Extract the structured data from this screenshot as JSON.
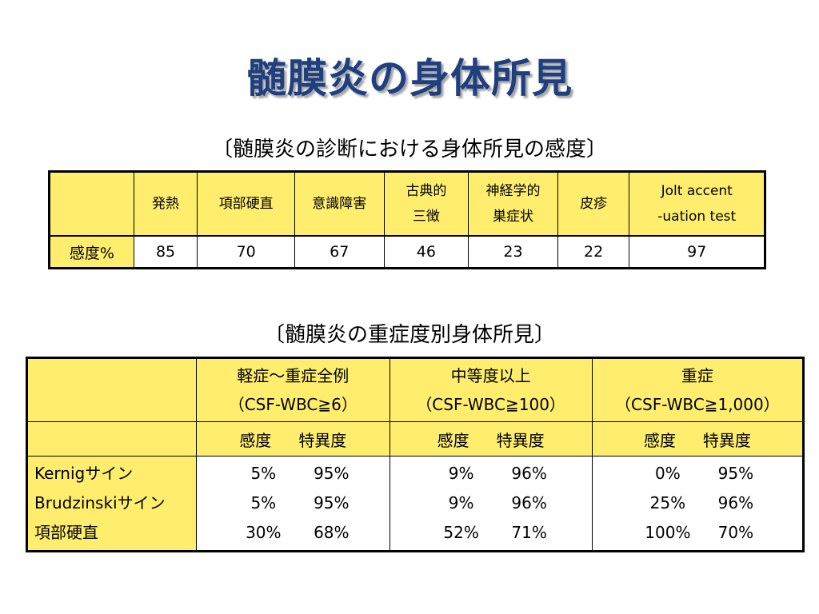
{
  "title": "髄膜炎の身体所見",
  "caption1": "〔髄膜炎の診断における身体所見の感度〕",
  "table1": {
    "headers": [
      {
        "line1": "発熱",
        "line2": ""
      },
      {
        "line1": "項部硬直",
        "line2": ""
      },
      {
        "line1": "意識障害",
        "line2": ""
      },
      {
        "line1": "古典的",
        "line2": "三徴"
      },
      {
        "line1": "神経学的",
        "line2": "巣症状"
      },
      {
        "line1": "皮疹",
        "line2": ""
      },
      {
        "line1": "Jolt accent",
        "line2": "-uation test"
      }
    ],
    "row_label": "感度%",
    "values": [
      "85",
      "70",
      "67",
      "46",
      "23",
      "22",
      "97"
    ]
  },
  "caption2": "〔髄膜炎の重症度別身体所見〕",
  "table2": {
    "groups": [
      {
        "line1": "軽症～重症全例",
        "line2": "（CSF-WBC≧6）"
      },
      {
        "line1": "中等度以上",
        "line2": "（CSF-WBC≧100）"
      },
      {
        "line1": "重症",
        "line2": "（CSF-WBC≧1,000）"
      }
    ],
    "sub_sensitivity": "感度",
    "sub_specificity": "特異度",
    "rows": [
      {
        "label": "Kernigサイン",
        "values": [
          [
            "5%",
            "95%"
          ],
          [
            "9%",
            "96%"
          ],
          [
            "0%",
            "95%"
          ]
        ]
      },
      {
        "label": "Brudzinskiサイン",
        "values": [
          [
            "5%",
            "95%"
          ],
          [
            "9%",
            "96%"
          ],
          [
            "25%",
            "96%"
          ]
        ]
      },
      {
        "label": "項部硬直",
        "values": [
          [
            "30%",
            "68%"
          ],
          [
            "52%",
            "71%"
          ],
          [
            "100%",
            "70%"
          ]
        ]
      }
    ]
  },
  "colors": {
    "title": "#1f3f7f",
    "header_fill": "#ffee6e",
    "border": "#000000"
  }
}
